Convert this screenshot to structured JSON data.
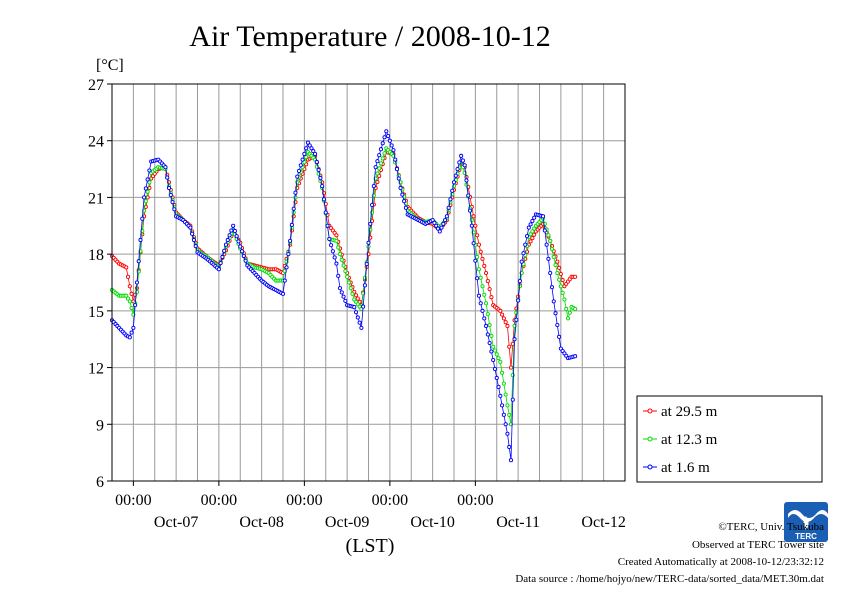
{
  "chart_data": {
    "type": "line",
    "title": "Air Temperature / 2008-10-12",
    "ylabel": "[°C]",
    "xlabel": "(LST)",
    "ylim": [
      6,
      27
    ],
    "yticks": [
      "6",
      "9",
      "12",
      "15",
      "18",
      "21",
      "24",
      "27"
    ],
    "xlim": [
      0,
      144
    ],
    "x_unit": "hours since 2008-10-06 18:00 LST",
    "time_labels": [
      {
        "x": 6,
        "label": "00:00"
      },
      {
        "x": 30,
        "label": "00:00"
      },
      {
        "x": 54,
        "label": "00:00"
      },
      {
        "x": 78,
        "label": "00:00"
      },
      {
        "x": 102,
        "label": "00:00"
      }
    ],
    "date_labels": [
      {
        "x": 18,
        "label": "Oct-07"
      },
      {
        "x": 42,
        "label": "Oct-08"
      },
      {
        "x": 66,
        "label": "Oct-09"
      },
      {
        "x": 90,
        "label": "Oct-10"
      },
      {
        "x": 114,
        "label": "Oct-11"
      },
      {
        "x": 138,
        "label": "Oct-12"
      }
    ],
    "x_gridlines": [
      6,
      12,
      18,
      24,
      30,
      36,
      42,
      48,
      54,
      60,
      66,
      72,
      78,
      84,
      90,
      96,
      102,
      108,
      114,
      120,
      126,
      132,
      138
    ],
    "grid": true,
    "legend_position": "right-bottom, outside plot",
    "series": [
      {
        "name": "at 29.5 m",
        "color": "#ff0000",
        "points": [
          [
            0,
            17.9
          ],
          [
            2,
            17.5
          ],
          [
            4,
            17.3
          ],
          [
            5,
            16.3
          ],
          [
            6,
            15.5
          ],
          [
            7,
            16.2
          ],
          [
            9,
            20
          ],
          [
            11,
            22
          ],
          [
            13,
            22.5
          ],
          [
            15,
            22.6
          ],
          [
            16,
            21.8
          ],
          [
            18,
            20.2
          ],
          [
            20,
            19.8
          ],
          [
            22,
            19.5
          ],
          [
            24,
            18.3
          ],
          [
            27,
            17.8
          ],
          [
            30,
            17.4
          ],
          [
            32,
            18.2
          ],
          [
            34,
            19.2
          ],
          [
            36,
            18.6
          ],
          [
            38,
            17.5
          ],
          [
            40,
            17.4
          ],
          [
            42,
            17.3
          ],
          [
            44,
            17.2
          ],
          [
            46,
            17.2
          ],
          [
            48,
            17.0
          ],
          [
            50,
            18.5
          ],
          [
            52,
            21.5
          ],
          [
            55,
            23.0
          ],
          [
            57,
            23.2
          ],
          [
            59,
            21.8
          ],
          [
            61,
            19.5
          ],
          [
            63,
            19.0
          ],
          [
            64,
            18.3
          ],
          [
            66,
            17.0
          ],
          [
            68,
            16.0
          ],
          [
            70,
            15.3
          ],
          [
            72,
            18.0
          ],
          [
            74,
            21.5
          ],
          [
            77,
            23.4
          ],
          [
            79,
            23.3
          ],
          [
            81,
            21.8
          ],
          [
            83,
            20.5
          ],
          [
            86,
            19.9
          ],
          [
            88,
            19.7
          ],
          [
            90,
            19.6
          ],
          [
            92,
            19.3
          ],
          [
            94,
            19.8
          ],
          [
            96,
            21.4
          ],
          [
            98,
            22.8
          ],
          [
            99,
            22.6
          ],
          [
            101,
            20.5
          ],
          [
            103,
            18.5
          ],
          [
            105,
            17.0
          ],
          [
            107,
            15.3
          ],
          [
            109,
            15.0
          ],
          [
            111,
            14.2
          ],
          [
            112,
            12.0
          ],
          [
            113,
            14.5
          ],
          [
            115,
            17.0
          ],
          [
            117,
            18.5
          ],
          [
            119,
            19.2
          ],
          [
            121,
            19.6
          ],
          [
            123,
            18.7
          ],
          [
            125,
            17.6
          ],
          [
            127,
            16.3
          ],
          [
            129,
            16.8
          ],
          [
            130,
            16.8
          ]
        ]
      },
      {
        "name": "at 12.3 m",
        "color": "#00dd00",
        "points": [
          [
            0,
            16.1
          ],
          [
            2,
            15.8
          ],
          [
            4,
            15.8
          ],
          [
            5,
            15.5
          ],
          [
            6,
            14.8
          ],
          [
            7,
            16.0
          ],
          [
            9,
            20.3
          ],
          [
            11,
            22.3
          ],
          [
            13,
            22.6
          ],
          [
            15,
            22.5
          ],
          [
            16,
            21.6
          ],
          [
            18,
            20.1
          ],
          [
            20,
            19.8
          ],
          [
            22,
            19.4
          ],
          [
            24,
            18.2
          ],
          [
            27,
            17.8
          ],
          [
            30,
            17.3
          ],
          [
            32,
            18.4
          ],
          [
            34,
            19.3
          ],
          [
            36,
            18.3
          ],
          [
            38,
            17.5
          ],
          [
            40,
            17.3
          ],
          [
            42,
            17.2
          ],
          [
            44,
            17.0
          ],
          [
            46,
            16.6
          ],
          [
            48,
            16.6
          ],
          [
            50,
            18.6
          ],
          [
            52,
            21.8
          ],
          [
            55,
            23.4
          ],
          [
            57,
            23.0
          ],
          [
            59,
            21.5
          ],
          [
            61,
            18.8
          ],
          [
            63,
            18.7
          ],
          [
            64,
            18.0
          ],
          [
            66,
            16.8
          ],
          [
            68,
            15.6
          ],
          [
            70,
            15.1
          ],
          [
            72,
            18.4
          ],
          [
            74,
            22.0
          ],
          [
            77,
            23.6
          ],
          [
            79,
            23.2
          ],
          [
            81,
            21.8
          ],
          [
            83,
            20.3
          ],
          [
            86,
            19.8
          ],
          [
            88,
            19.7
          ],
          [
            90,
            19.8
          ],
          [
            92,
            19.4
          ],
          [
            94,
            19.9
          ],
          [
            96,
            21.6
          ],
          [
            98,
            22.9
          ],
          [
            99,
            22.3
          ],
          [
            101,
            19.8
          ],
          [
            103,
            17.2
          ],
          [
            105,
            15.4
          ],
          [
            107,
            13.1
          ],
          [
            109,
            12.3
          ],
          [
            111,
            10.0
          ],
          [
            112,
            9.0
          ],
          [
            113,
            14.2
          ],
          [
            115,
            17.0
          ],
          [
            117,
            18.9
          ],
          [
            119,
            19.5
          ],
          [
            121,
            19.9
          ],
          [
            123,
            18.7
          ],
          [
            125,
            17.0
          ],
          [
            127,
            15.6
          ],
          [
            128,
            14.6
          ],
          [
            129,
            15.2
          ],
          [
            130,
            15.1
          ]
        ]
      },
      {
        "name": "at 1.6 m",
        "color": "#0000ff",
        "points": [
          [
            0,
            14.5
          ],
          [
            1,
            14.3
          ],
          [
            2,
            14.1
          ],
          [
            3,
            13.9
          ],
          [
            4,
            13.7
          ],
          [
            5,
            13.6
          ],
          [
            6,
            14.1
          ],
          [
            7,
            16.5
          ],
          [
            9,
            21.0
          ],
          [
            11,
            22.9
          ],
          [
            13,
            23.0
          ],
          [
            15,
            22.6
          ],
          [
            16,
            21.5
          ],
          [
            18,
            20.0
          ],
          [
            20,
            19.8
          ],
          [
            22,
            19.4
          ],
          [
            24,
            18.1
          ],
          [
            27,
            17.7
          ],
          [
            30,
            17.2
          ],
          [
            32,
            18.5
          ],
          [
            34,
            19.5
          ],
          [
            36,
            18.4
          ],
          [
            38,
            17.4
          ],
          [
            40,
            17.0
          ],
          [
            42,
            16.6
          ],
          [
            44,
            16.3
          ],
          [
            46,
            16.1
          ],
          [
            48,
            15.9
          ],
          [
            50,
            18.7
          ],
          [
            52,
            22.1
          ],
          [
            55,
            23.9
          ],
          [
            57,
            23.3
          ],
          [
            59,
            21.6
          ],
          [
            61,
            18.8
          ],
          [
            63,
            17.5
          ],
          [
            64,
            16.2
          ],
          [
            66,
            15.3
          ],
          [
            68,
            15.2
          ],
          [
            70,
            14.1
          ],
          [
            72,
            18.6
          ],
          [
            74,
            22.6
          ],
          [
            77,
            24.5
          ],
          [
            79,
            23.5
          ],
          [
            81,
            21.5
          ],
          [
            83,
            20.1
          ],
          [
            86,
            19.8
          ],
          [
            88,
            19.6
          ],
          [
            90,
            19.8
          ],
          [
            92,
            19.2
          ],
          [
            94,
            20.0
          ],
          [
            96,
            21.8
          ],
          [
            98,
            23.2
          ],
          [
            99,
            22.7
          ],
          [
            101,
            19.5
          ],
          [
            103,
            15.8
          ],
          [
            105,
            14.2
          ],
          [
            107,
            12.4
          ],
          [
            109,
            10.5
          ],
          [
            111,
            8.5
          ],
          [
            112,
            7.1
          ],
          [
            113,
            13.5
          ],
          [
            115,
            17.6
          ],
          [
            117,
            19.4
          ],
          [
            119,
            20.1
          ],
          [
            121,
            20.0
          ],
          [
            122,
            18.5
          ],
          [
            124,
            15.5
          ],
          [
            126,
            13.0
          ],
          [
            128,
            12.5
          ],
          [
            130,
            12.6
          ]
        ]
      }
    ]
  },
  "credits": {
    "copyright": "©TERC, Univ. Tsukuba",
    "observed": "Observed at TERC Tower site",
    "created": "Created Automatically at 2008-10-12/23:32:12",
    "source": "Data source : /home/hojyo/new/TERC-data/sorted_data/MET.30m.dat",
    "logo_text": "TERC"
  }
}
